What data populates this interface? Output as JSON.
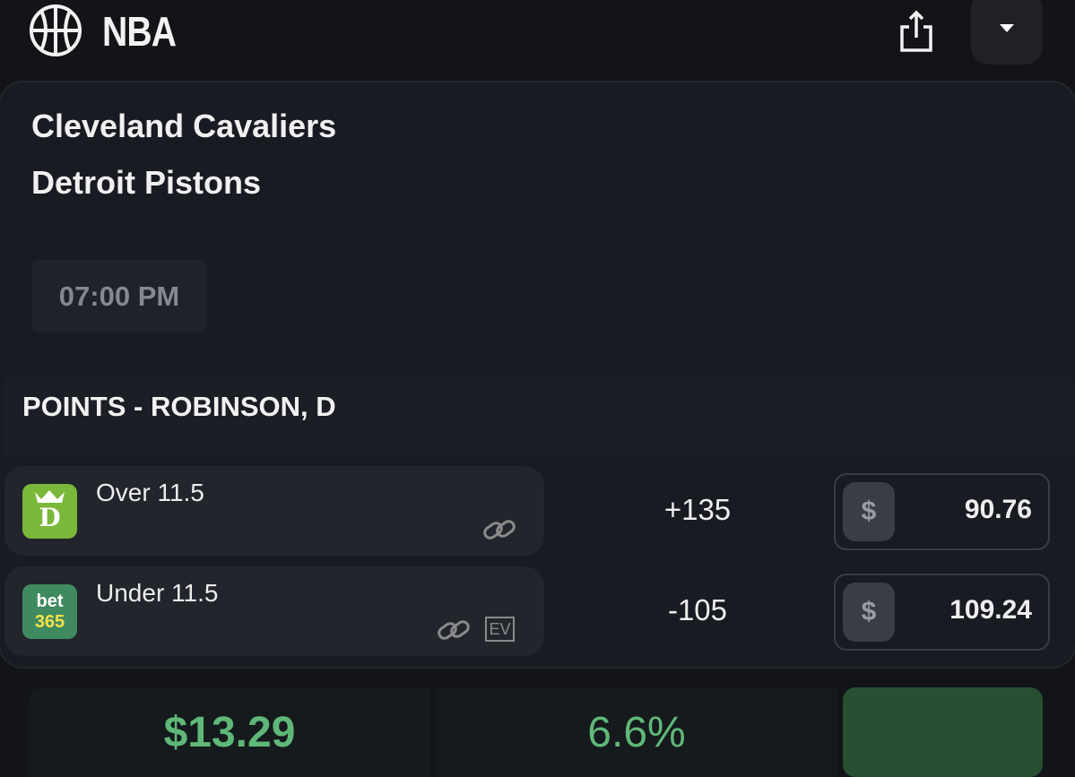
{
  "header": {
    "title": "NBA",
    "icon": "basketball-icon",
    "share_icon": "share-icon",
    "dropdown_icon": "caret-down-icon"
  },
  "game": {
    "home_team": "Cleveland Cavaliers",
    "away_team": "Detroit Pistons",
    "time": "07:00 PM"
  },
  "market": {
    "title": "POINTS - ROBINSON, D"
  },
  "rows": [
    {
      "book": "DraftKings",
      "book_logo_text": "D",
      "selection": "Over 11.5",
      "odds": "+135",
      "currency": "$",
      "stake": "90.76",
      "book_color": "#7ab83a"
    },
    {
      "book": "bet365",
      "book_logo_text_top": "bet",
      "book_logo_text_bottom": "365",
      "selection": "Under 11.5",
      "odds": "-105",
      "currency": "$",
      "stake": "109.24",
      "ev_badge": "EV",
      "book_color": "#3f8a5f"
    }
  ],
  "summary": {
    "profit": "$13.29",
    "percent": "6.6%",
    "accent": "#5fb878",
    "action_color": "#284f31"
  }
}
